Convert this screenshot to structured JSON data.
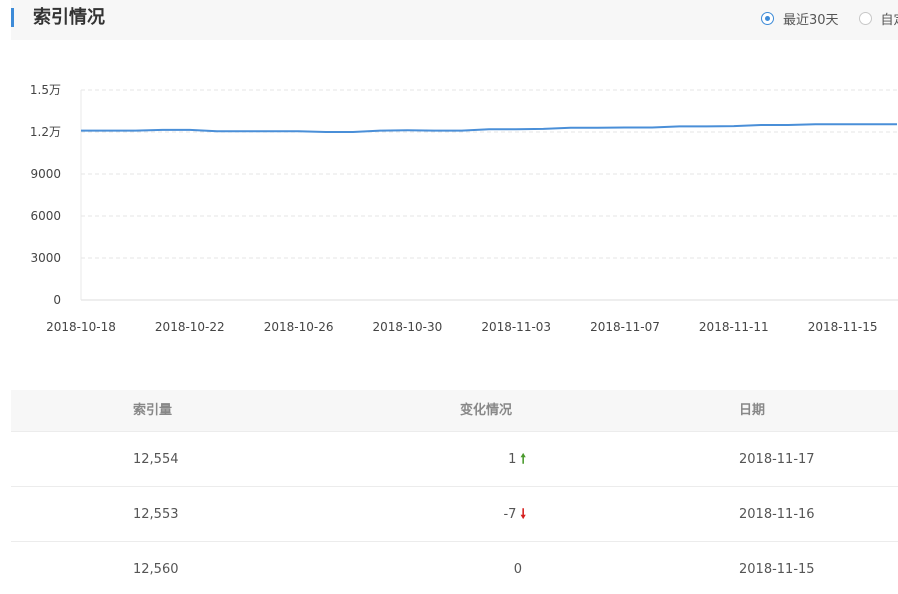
{
  "header": {
    "title": "索引情况",
    "accent_color": "#3d8bd8"
  },
  "range_options": [
    {
      "label": "最近30天",
      "checked": true
    },
    {
      "label": "自定义",
      "checked": false
    }
  ],
  "chart_data": {
    "type": "line",
    "title": "",
    "xlabel": "",
    "ylabel": "",
    "ylim": [
      0,
      15000
    ],
    "y_ticks": [
      "0",
      "3000",
      "6000",
      "9000",
      "1.2万",
      "1.5万"
    ],
    "x_tick_labels": [
      "2018-10-18",
      "2018-10-22",
      "2018-10-26",
      "2018-10-30",
      "2018-11-03",
      "2018-11-07",
      "2018-11-11",
      "2018-11-15"
    ],
    "grid": true,
    "line_color": "#4a8fd8",
    "series": [
      {
        "x": [
          "2018-10-18",
          "2018-10-19",
          "2018-10-20",
          "2018-10-21",
          "2018-10-22",
          "2018-10-23",
          "2018-10-24",
          "2018-10-25",
          "2018-10-26",
          "2018-10-27",
          "2018-10-28",
          "2018-10-29",
          "2018-10-30",
          "2018-10-31",
          "2018-11-01",
          "2018-11-02",
          "2018-11-03",
          "2018-11-04",
          "2018-11-05",
          "2018-11-06",
          "2018-11-07",
          "2018-11-08",
          "2018-11-09",
          "2018-11-10",
          "2018-11-11",
          "2018-11-12",
          "2018-11-13",
          "2018-11-14",
          "2018-11-15",
          "2018-11-16",
          "2018-11-17"
        ],
        "values": [
          12100,
          12100,
          12100,
          12150,
          12150,
          12050,
          12050,
          12050,
          12050,
          12000,
          12000,
          12100,
          12120,
          12100,
          12100,
          12200,
          12200,
          12220,
          12300,
          12300,
          12320,
          12320,
          12400,
          12400,
          12420,
          12500,
          12500,
          12560,
          12560,
          12553,
          12554
        ]
      }
    ]
  },
  "table": {
    "headers": [
      "索引量",
      "变化情况",
      "日期"
    ],
    "rows": [
      {
        "count": "12,554",
        "change": "1",
        "direction": "up",
        "date": "2018-11-17"
      },
      {
        "count": "12,553",
        "change": "-7",
        "direction": "down",
        "date": "2018-11-16"
      },
      {
        "count": "12,560",
        "change": "0",
        "direction": "none",
        "date": "2018-11-15"
      }
    ]
  }
}
